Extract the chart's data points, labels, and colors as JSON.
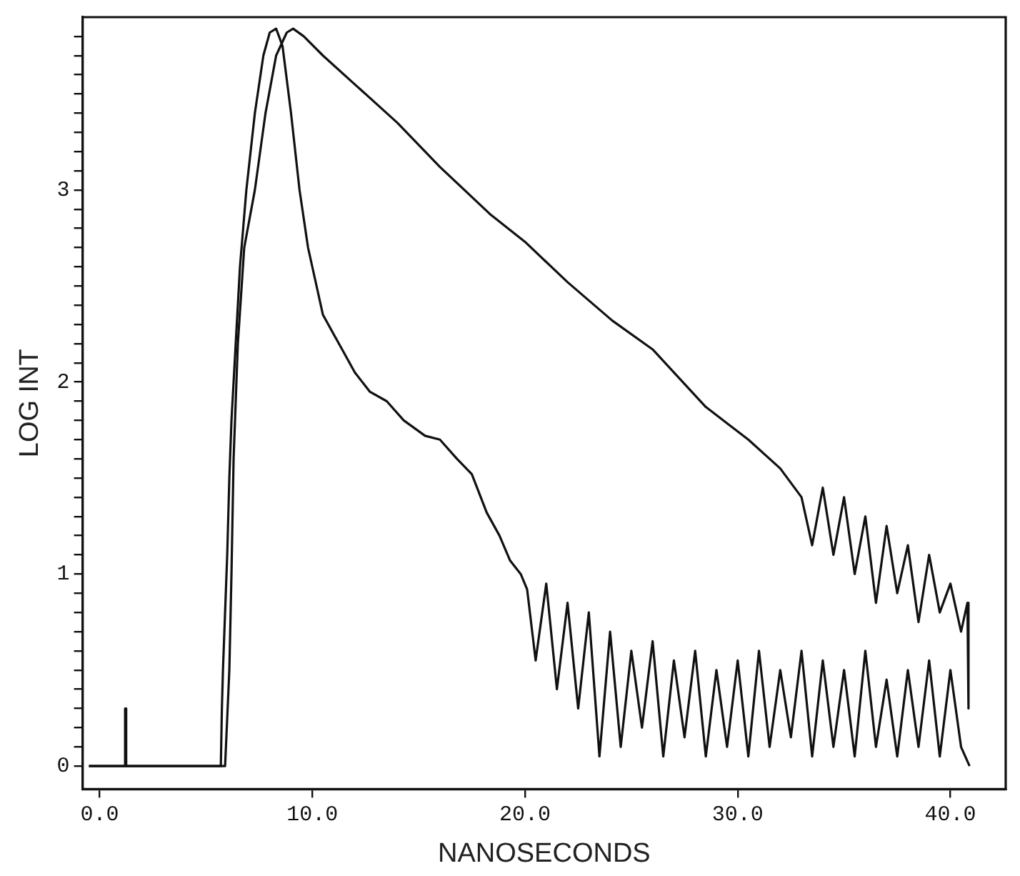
{
  "chart_data": {
    "type": "line",
    "xlabel": "NANOSECONDS",
    "ylabel": "LOG INT",
    "xlim": [
      -0.8,
      42.6
    ],
    "ylim": [
      -0.12,
      3.9
    ],
    "xticks": [
      {
        "value": 0,
        "label": "0.0"
      },
      {
        "value": 10,
        "label": "10.0"
      },
      {
        "value": 20,
        "label": "20.0"
      },
      {
        "value": 30,
        "label": "30.0"
      },
      {
        "value": 40,
        "label": "40.0"
      }
    ],
    "yticks": [
      0,
      {
        "value": 0.1,
        "label": null
      },
      {
        "value": 0.2,
        "label": null
      },
      {
        "value": 0.3,
        "label": null
      },
      {
        "value": 0.4,
        "label": null
      },
      {
        "value": 0.5,
        "label": null
      },
      {
        "value": 0.6,
        "label": null
      },
      {
        "value": 0.7,
        "label": null
      },
      {
        "value": 0.8,
        "label": null
      },
      {
        "value": 0.9,
        "label": null
      },
      1,
      {
        "value": 1.1,
        "label": null
      },
      {
        "value": 1.2,
        "label": null
      },
      {
        "value": 1.3,
        "label": null
      },
      {
        "value": 1.4,
        "label": null
      },
      {
        "value": 1.5,
        "label": null
      },
      {
        "value": 1.6,
        "label": null
      },
      {
        "value": 1.7,
        "label": null
      },
      {
        "value": 1.8,
        "label": null
      },
      {
        "value": 1.9,
        "label": null
      },
      2,
      {
        "value": 2.1,
        "label": null
      },
      {
        "value": 2.2,
        "label": null
      },
      {
        "value": 2.3,
        "label": null
      },
      {
        "value": 2.4,
        "label": null
      },
      {
        "value": 2.5,
        "label": null
      },
      {
        "value": 2.6,
        "label": null
      },
      {
        "value": 2.7,
        "label": null
      },
      {
        "value": 2.8,
        "label": null
      },
      {
        "value": 2.9,
        "label": null
      },
      3,
      {
        "value": 3.1,
        "label": null
      },
      {
        "value": 3.2,
        "label": null
      },
      {
        "value": 3.3,
        "label": null
      },
      {
        "value": 3.4,
        "label": null
      },
      {
        "value": 3.5,
        "label": null
      },
      {
        "value": 3.6,
        "label": null
      },
      {
        "value": 3.7,
        "label": null
      },
      {
        "value": 3.8,
        "label": null
      }
    ],
    "grid": false,
    "legend": false,
    "marker": "none",
    "line_style": "solid",
    "series": [
      {
        "color": "#111111",
        "x": [
          -0.5,
          1.2,
          1.2,
          1.25,
          1.25,
          5.7,
          5.75,
          5.8,
          5.9,
          6.0,
          6.1,
          6.2,
          6.4,
          6.6,
          6.9,
          7.3,
          7.7,
          8.0,
          8.3,
          8.6,
          9.0,
          9.4,
          9.8,
          10.2,
          10.5,
          11.0,
          11.5,
          12.0,
          12.7,
          13.5,
          14.3,
          15.3,
          16.0,
          16.8,
          17.5,
          18.2,
          18.8,
          19.3,
          19.8,
          20.1,
          20.5,
          21.0,
          21.5,
          22.0,
          22.5,
          23.0,
          23.5,
          24.0,
          24.5,
          25.0,
          25.5,
          26.0,
          26.5,
          27.0,
          27.5,
          28.0,
          28.5,
          29.0,
          29.5,
          30.0,
          30.5,
          31.0,
          31.5,
          32.0,
          32.5,
          33.0,
          33.5,
          34.0,
          34.5,
          35.0,
          35.5,
          36.0,
          36.5,
          37.0,
          37.5,
          38.0,
          38.5,
          39.0,
          39.5,
          40.0,
          40.5,
          40.9
        ],
        "values": [
          0,
          0,
          0.3,
          0.3,
          0,
          0,
          0.3,
          0.5,
          0.8,
          1.1,
          1.5,
          1.8,
          2.2,
          2.6,
          3.0,
          3.4,
          3.7,
          3.82,
          3.84,
          3.75,
          3.4,
          3.0,
          2.7,
          2.5,
          2.35,
          2.25,
          2.15,
          2.05,
          1.95,
          1.9,
          1.8,
          1.72,
          1.7,
          1.6,
          1.52,
          1.32,
          1.2,
          1.07,
          1.0,
          0.92,
          0.55,
          0.95,
          0.4,
          0.85,
          0.3,
          0.8,
          0.05,
          0.7,
          0.1,
          0.6,
          0.2,
          0.65,
          0.05,
          0.55,
          0.15,
          0.6,
          0.05,
          0.5,
          0.1,
          0.55,
          0.05,
          0.6,
          0.1,
          0.5,
          0.15,
          0.6,
          0.05,
          0.55,
          0.1,
          0.5,
          0.05,
          0.6,
          0.1,
          0.45,
          0.05,
          0.5,
          0.1,
          0.55,
          0.05,
          0.5,
          0.1,
          0
        ]
      },
      {
        "color": "#111111",
        "x": [
          -0.5,
          5.9,
          6.1,
          6.2,
          6.3,
          6.5,
          6.8,
          7.3,
          7.8,
          8.3,
          8.8,
          9.1,
          9.6,
          10.5,
          12.0,
          14.0,
          16.0,
          18.4,
          20.0,
          22.0,
          24.1,
          26.0,
          28.5,
          30.5,
          32.0,
          33.0,
          33.5,
          34.0,
          34.5,
          35.0,
          35.5,
          36.0,
          36.5,
          37.0,
          37.5,
          38.0,
          38.5,
          39.0,
          39.5,
          40.0,
          40.5,
          40.8,
          40.85
        ],
        "values": [
          0,
          0,
          0.5,
          1.0,
          1.6,
          2.2,
          2.7,
          3.0,
          3.4,
          3.7,
          3.82,
          3.84,
          3.8,
          3.7,
          3.55,
          3.35,
          3.12,
          2.87,
          2.73,
          2.52,
          2.32,
          2.17,
          1.87,
          1.7,
          1.55,
          1.4,
          1.15,
          1.45,
          1.1,
          1.4,
          1.0,
          1.3,
          0.85,
          1.25,
          0.9,
          1.15,
          0.75,
          1.1,
          0.8,
          0.95,
          0.7,
          0.85,
          0.3
        ]
      }
    ]
  }
}
